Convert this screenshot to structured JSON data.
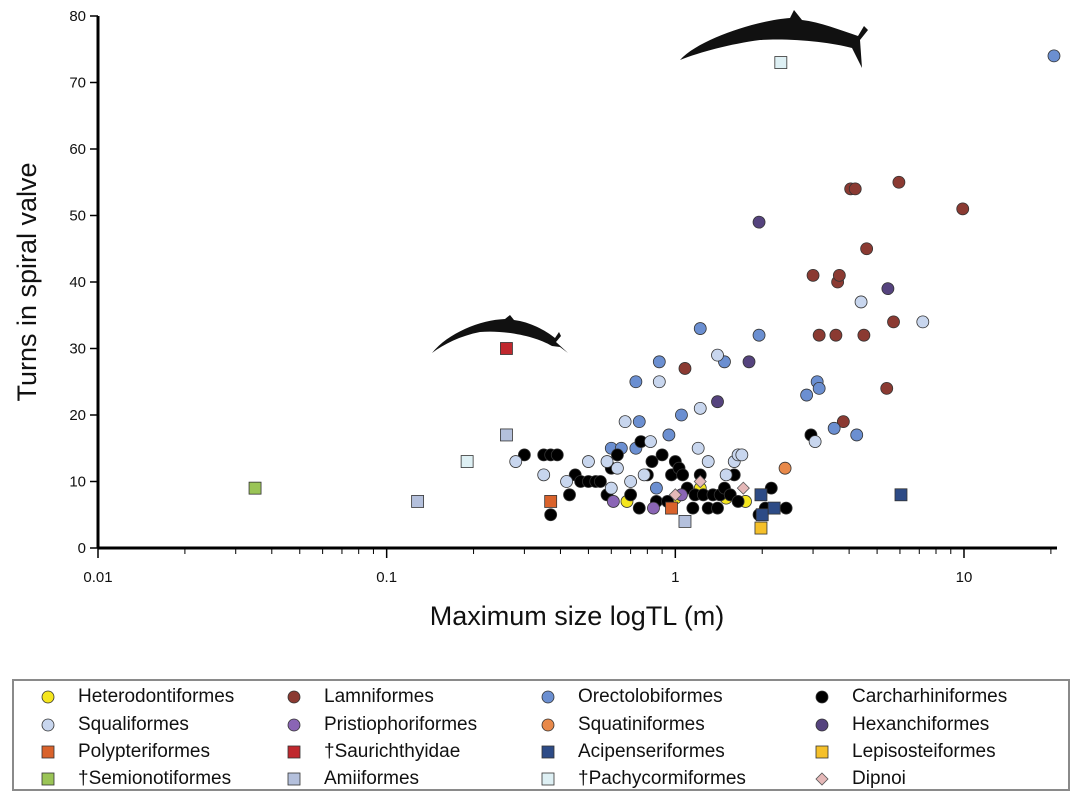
{
  "chart_data": {
    "type": "scatter",
    "xscale": "log",
    "xlim": [
      0.01,
      21
    ],
    "ylim": [
      0,
      80
    ],
    "xlabel": "Maximum size logTL (m)",
    "ylabel": "Turns in spiral valve",
    "xticks": [
      {
        "v": 0.01,
        "label": "0.01"
      },
      {
        "v": 0.1,
        "label": "0.1"
      },
      {
        "v": 1,
        "label": "1"
      },
      {
        "v": 10,
        "label": "10"
      }
    ],
    "yticks": [
      {
        "v": 0,
        "label": "0"
      },
      {
        "v": 10,
        "label": "10"
      },
      {
        "v": 20,
        "label": "20"
      },
      {
        "v": 30,
        "label": "30"
      },
      {
        "v": 40,
        "label": "40"
      },
      {
        "v": 50,
        "label": "50"
      },
      {
        "v": 60,
        "label": "60"
      },
      {
        "v": 70,
        "label": "70"
      },
      {
        "v": 80,
        "label": "80"
      }
    ],
    "legend_position": "bottom",
    "series": [
      {
        "name": "Heterodontiformes",
        "shape": "circle",
        "color": "#f5e61e",
        "points": [
          [
            0.68,
            7
          ],
          [
            1.0,
            7.5
          ],
          [
            1.22,
            9
          ],
          [
            1.5,
            7.5
          ],
          [
            1.75,
            7
          ]
        ]
      },
      {
        "name": "Lamniformes",
        "shape": "circle",
        "color": "#8b3a32",
        "points": [
          [
            1.08,
            27
          ],
          [
            3.0,
            41
          ],
          [
            3.15,
            32
          ],
          [
            3.6,
            32
          ],
          [
            3.65,
            40
          ],
          [
            3.7,
            41
          ],
          [
            3.82,
            19
          ],
          [
            4.05,
            54
          ],
          [
            4.2,
            54
          ],
          [
            4.5,
            32
          ],
          [
            4.6,
            45
          ],
          [
            5.4,
            24
          ],
          [
            5.7,
            34
          ],
          [
            5.95,
            55
          ],
          [
            9.9,
            51
          ]
        ]
      },
      {
        "name": "Orectolobiformes",
        "shape": "circle",
        "color": "#6b8fd1",
        "points": [
          [
            0.6,
            15
          ],
          [
            0.65,
            15
          ],
          [
            0.73,
            25
          ],
          [
            0.73,
            15
          ],
          [
            0.75,
            19
          ],
          [
            0.86,
            9
          ],
          [
            0.88,
            28
          ],
          [
            0.95,
            17
          ],
          [
            1.05,
            20
          ],
          [
            1.22,
            33
          ],
          [
            1.48,
            28
          ],
          [
            1.95,
            32
          ],
          [
            2.85,
            23
          ],
          [
            3.1,
            25
          ],
          [
            3.15,
            24
          ],
          [
            3.55,
            18
          ],
          [
            4.25,
            17
          ],
          [
            20.5,
            74
          ]
        ]
      },
      {
        "name": "Carcharhiniformes",
        "shape": "circle",
        "color": "#000000",
        "points": [
          [
            0.3,
            14
          ],
          [
            0.35,
            14
          ],
          [
            0.37,
            5
          ],
          [
            0.37,
            14
          ],
          [
            0.39,
            14
          ],
          [
            0.43,
            8
          ],
          [
            0.45,
            11
          ],
          [
            0.47,
            10
          ],
          [
            0.5,
            10
          ],
          [
            0.53,
            10
          ],
          [
            0.55,
            10
          ],
          [
            0.58,
            8
          ],
          [
            0.6,
            12
          ],
          [
            0.63,
            14
          ],
          [
            0.7,
            8
          ],
          [
            0.75,
            6
          ],
          [
            0.76,
            16
          ],
          [
            0.8,
            11
          ],
          [
            0.83,
            13
          ],
          [
            0.86,
            7
          ],
          [
            0.9,
            14
          ],
          [
            0.94,
            7
          ],
          [
            0.97,
            11
          ],
          [
            1.0,
            13
          ],
          [
            1.03,
            12
          ],
          [
            1.06,
            11
          ],
          [
            1.1,
            9
          ],
          [
            1.15,
            6
          ],
          [
            1.17,
            8
          ],
          [
            1.22,
            11
          ],
          [
            1.25,
            8
          ],
          [
            1.3,
            6
          ],
          [
            1.35,
            8
          ],
          [
            1.4,
            6
          ],
          [
            1.43,
            8
          ],
          [
            1.48,
            9
          ],
          [
            1.55,
            8
          ],
          [
            1.6,
            11
          ],
          [
            1.65,
            7
          ],
          [
            1.95,
            5
          ],
          [
            2.05,
            6
          ],
          [
            2.15,
            9
          ],
          [
            2.42,
            6
          ],
          [
            2.95,
            17
          ]
        ]
      },
      {
        "name": "Squaliformes",
        "shape": "circle",
        "color": "#c8d6ee",
        "points": [
          [
            0.28,
            13
          ],
          [
            0.35,
            11
          ],
          [
            0.42,
            10
          ],
          [
            0.5,
            13
          ],
          [
            0.58,
            13
          ],
          [
            0.6,
            9
          ],
          [
            0.63,
            12
          ],
          [
            0.67,
            19
          ],
          [
            0.7,
            10
          ],
          [
            0.78,
            11
          ],
          [
            0.82,
            16
          ],
          [
            0.88,
            25
          ],
          [
            1.2,
            15
          ],
          [
            1.22,
            21
          ],
          [
            1.3,
            13
          ],
          [
            1.4,
            29
          ],
          [
            1.5,
            11
          ],
          [
            1.6,
            13
          ],
          [
            1.65,
            14
          ],
          [
            1.7,
            14
          ],
          [
            3.05,
            16
          ],
          [
            4.4,
            37
          ],
          [
            7.2,
            34
          ]
        ]
      },
      {
        "name": "Pristiophoriformes",
        "shape": "circle",
        "color": "#8a65b5",
        "points": [
          [
            0.61,
            7
          ],
          [
            0.84,
            6
          ],
          [
            1.05,
            8
          ]
        ]
      },
      {
        "name": "Squatiniformes",
        "shape": "circle",
        "color": "#e8894a",
        "points": [
          [
            2.4,
            12
          ]
        ]
      },
      {
        "name": "Hexanchiformes",
        "shape": "circle",
        "color": "#55437e",
        "points": [
          [
            1.4,
            22
          ],
          [
            1.8,
            28
          ],
          [
            1.95,
            49
          ],
          [
            5.45,
            39
          ]
        ]
      },
      {
        "name": "Polypteriformes",
        "shape": "square",
        "color": "#d9622b",
        "points": [
          [
            0.37,
            7
          ],
          [
            0.97,
            6
          ]
        ]
      },
      {
        "name": "†Saurichthyidae",
        "shape": "square",
        "color": "#c0282e",
        "points": [
          [
            0.26,
            30
          ]
        ]
      },
      {
        "name": "Acipenseriformes",
        "shape": "square",
        "color": "#2d4b86",
        "points": [
          [
            1.98,
            8
          ],
          [
            2.0,
            5
          ],
          [
            2.2,
            6
          ],
          [
            6.05,
            8
          ]
        ]
      },
      {
        "name": "Lepisosteiformes",
        "shape": "square",
        "color": "#f5c02a",
        "points": [
          [
            1.98,
            3
          ]
        ]
      },
      {
        "name": "†Semionotiformes",
        "shape": "square",
        "color": "#9ac456",
        "points": [
          [
            0.035,
            9
          ]
        ]
      },
      {
        "name": "Amiiformes",
        "shape": "square",
        "color": "#b4c0dc",
        "points": [
          [
            0.128,
            7
          ],
          [
            0.26,
            17
          ],
          [
            1.08,
            4
          ]
        ]
      },
      {
        "name": "†Pachycormiformes",
        "shape": "square",
        "color": "#def0f4",
        "points": [
          [
            0.19,
            13
          ],
          [
            2.32,
            73
          ]
        ]
      },
      {
        "name": "Dipnoi",
        "shape": "diamond",
        "color": "#e5b8b8",
        "points": [
          [
            1.0,
            8
          ],
          [
            1.22,
            10
          ],
          [
            1.72,
            9
          ]
        ]
      }
    ]
  }
}
